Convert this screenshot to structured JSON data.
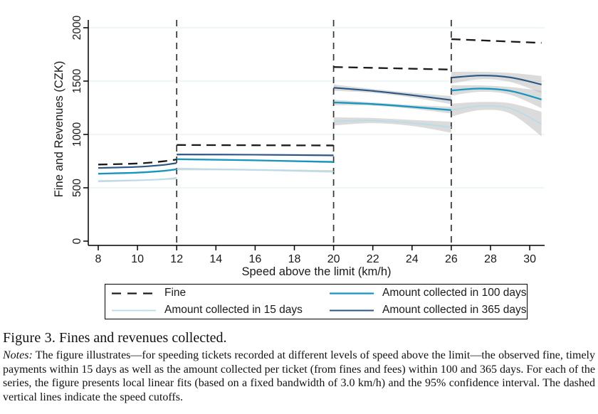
{
  "caption": {
    "label": "Figure 3.",
    "title": "Fines and revenues collected."
  },
  "notes": {
    "label": "Notes:",
    "text": "The figure illustrates—for speeding tickets recorded at different levels of speed above the limit—the observed fine, timely payments within 15 days as well as the amount collected per ticket (from fines and fees) within 100 and 365 days. For each of the series, the figure presents local linear fits (based on a fixed bandwidth of 3.0 km/h) and the 95% confidence interval. The dashed vertical lines indicate the speed cutoffs."
  },
  "chart_data": {
    "type": "line",
    "title": "",
    "xlabel": "Speed above the limit (km/h)",
    "ylabel": "Fine and Revenues (CZK)",
    "xlim": [
      7.5,
      30.9
    ],
    "ylim": [
      0,
      2040
    ],
    "xticks": [
      8,
      10,
      12,
      14,
      16,
      18,
      20,
      22,
      24,
      26,
      28,
      30
    ],
    "yticks": [
      0,
      500,
      1000,
      1500,
      2000
    ],
    "cutoffs": [
      12,
      20,
      26
    ],
    "grid": true,
    "legend_position": "bottom-box-2col",
    "colors": {
      "axis": "#000000",
      "grid": "#e4f2f1",
      "cutoff": "#333333",
      "ci_band": "#b7b7b7"
    },
    "series": [
      {
        "name": "Fine",
        "color": "#1a1a1a",
        "style": "dashed",
        "width": 2.3,
        "segments": [
          {
            "x": [
              8,
              10,
              11.3,
              12
            ],
            "y": [
              718,
              728,
              748,
              766
            ]
          },
          {
            "x": [
              12,
              16,
              20
            ],
            "y": [
              901,
              899,
              897
            ]
          },
          {
            "x": [
              20,
              23,
              26
            ],
            "y": [
              1632,
              1620,
              1608
            ]
          },
          {
            "x": [
              26,
              28,
              30.6
            ],
            "y": [
              1893,
              1878,
              1858
            ]
          }
        ]
      },
      {
        "name": "Amount collected in 15 days",
        "color": "#b8dce8",
        "style": "solid",
        "width": 1.8,
        "segments": [
          {
            "x": [
              8,
              10,
              11.3,
              12
            ],
            "y": [
              562,
              570,
              580,
              590
            ],
            "ci": [
              10,
              7,
              7,
              12
            ]
          },
          {
            "x": [
              12,
              16,
              20
            ],
            "y": [
              676,
              668,
              654
            ],
            "ci": [
              12,
              8,
              12
            ]
          },
          {
            "x": [
              20,
              22,
              24,
              26
            ],
            "y": [
              1122,
              1130,
              1108,
              1068
            ],
            "ci": [
              38,
              24,
              28,
              52
            ]
          },
          {
            "x": [
              26,
              27.5,
              29,
              30.6
            ],
            "y": [
              1228,
              1266,
              1245,
              1098
            ],
            "ci": [
              60,
              38,
              48,
              115
            ]
          }
        ]
      },
      {
        "name": "Amount collected in 100 days",
        "color": "#1696be",
        "style": "solid",
        "width": 2.3,
        "segments": [
          {
            "x": [
              8,
              10,
              11.3,
              12
            ],
            "y": [
              632,
              642,
              658,
              674
            ],
            "ci": [
              9,
              6,
              6,
              10
            ]
          },
          {
            "x": [
              12,
              16,
              20
            ],
            "y": [
              768,
              757,
              742
            ],
            "ci": [
              10,
              7,
              10
            ]
          },
          {
            "x": [
              20,
              22,
              24,
              26
            ],
            "y": [
              1300,
              1285,
              1258,
              1228
            ],
            "ci": [
              25,
              15,
              18,
              32
            ]
          },
          {
            "x": [
              26,
              27.5,
              29,
              30.6
            ],
            "y": [
              1412,
              1430,
              1408,
              1328
            ],
            "ci": [
              48,
              30,
              36,
              82
            ]
          }
        ]
      },
      {
        "name": "Amount collected in 365 days",
        "color": "#2a5783",
        "style": "solid",
        "width": 2.1,
        "segments": [
          {
            "x": [
              8,
              10,
              11.3,
              12
            ],
            "y": [
              686,
              696,
              714,
              732
            ],
            "ci": [
              9,
              6,
              6,
              10
            ]
          },
          {
            "x": [
              12,
              16,
              20
            ],
            "y": [
              812,
              810,
              804
            ],
            "ci": [
              10,
              7,
              10
            ]
          },
          {
            "x": [
              20,
              22,
              24,
              26
            ],
            "y": [
              1438,
              1408,
              1368,
              1322
            ],
            "ci": [
              30,
              18,
              22,
              38
            ]
          },
          {
            "x": [
              26,
              27.5,
              29,
              30.6
            ],
            "y": [
              1532,
              1552,
              1535,
              1468
            ],
            "ci": [
              55,
              35,
              42,
              80
            ]
          }
        ]
      }
    ],
    "legend": {
      "items": [
        {
          "label": "Fine",
          "series": 0
        },
        {
          "label": "Amount collected in 100 days",
          "series": 2
        },
        {
          "label": "Amount collected in 15 days",
          "series": 1
        },
        {
          "label": "Amount collected in 365 days",
          "series": 3
        }
      ]
    }
  }
}
